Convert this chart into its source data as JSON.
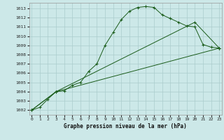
{
  "xlabel": "Graphe pression niveau de la mer (hPa)",
  "ylim": [
    1001.5,
    1013.6
  ],
  "xlim": [
    -0.3,
    23.3
  ],
  "yticks": [
    1002,
    1003,
    1004,
    1005,
    1006,
    1007,
    1008,
    1009,
    1010,
    1011,
    1012,
    1013
  ],
  "xticks": [
    0,
    1,
    2,
    3,
    4,
    5,
    6,
    7,
    8,
    9,
    10,
    11,
    12,
    13,
    14,
    15,
    16,
    17,
    18,
    19,
    20,
    21,
    22,
    23
  ],
  "bg_color": "#cce8e8",
  "line_color": "#1a5c1a",
  "grid_color": "#aacccc",
  "line1_x": [
    0,
    1,
    2,
    3,
    4,
    5,
    6,
    7,
    8,
    9,
    10,
    11,
    12,
    13,
    14,
    15,
    16,
    17,
    18,
    19,
    20,
    21,
    22,
    23
  ],
  "line1_y": [
    1002.0,
    1002.3,
    1003.2,
    1004.0,
    1004.1,
    1004.7,
    1005.0,
    1006.2,
    1007.0,
    1009.0,
    1010.4,
    1011.8,
    1012.7,
    1013.1,
    1013.2,
    1013.1,
    1012.3,
    1011.9,
    1011.5,
    1011.1,
    1011.0,
    1009.1,
    1008.8,
    1008.7
  ],
  "line2_x": [
    0,
    3,
    23
  ],
  "line2_y": [
    1002.0,
    1004.0,
    1008.7
  ],
  "line3_x": [
    0,
    3,
    20,
    23
  ],
  "line3_y": [
    1002.0,
    1004.0,
    1011.5,
    1008.7
  ]
}
